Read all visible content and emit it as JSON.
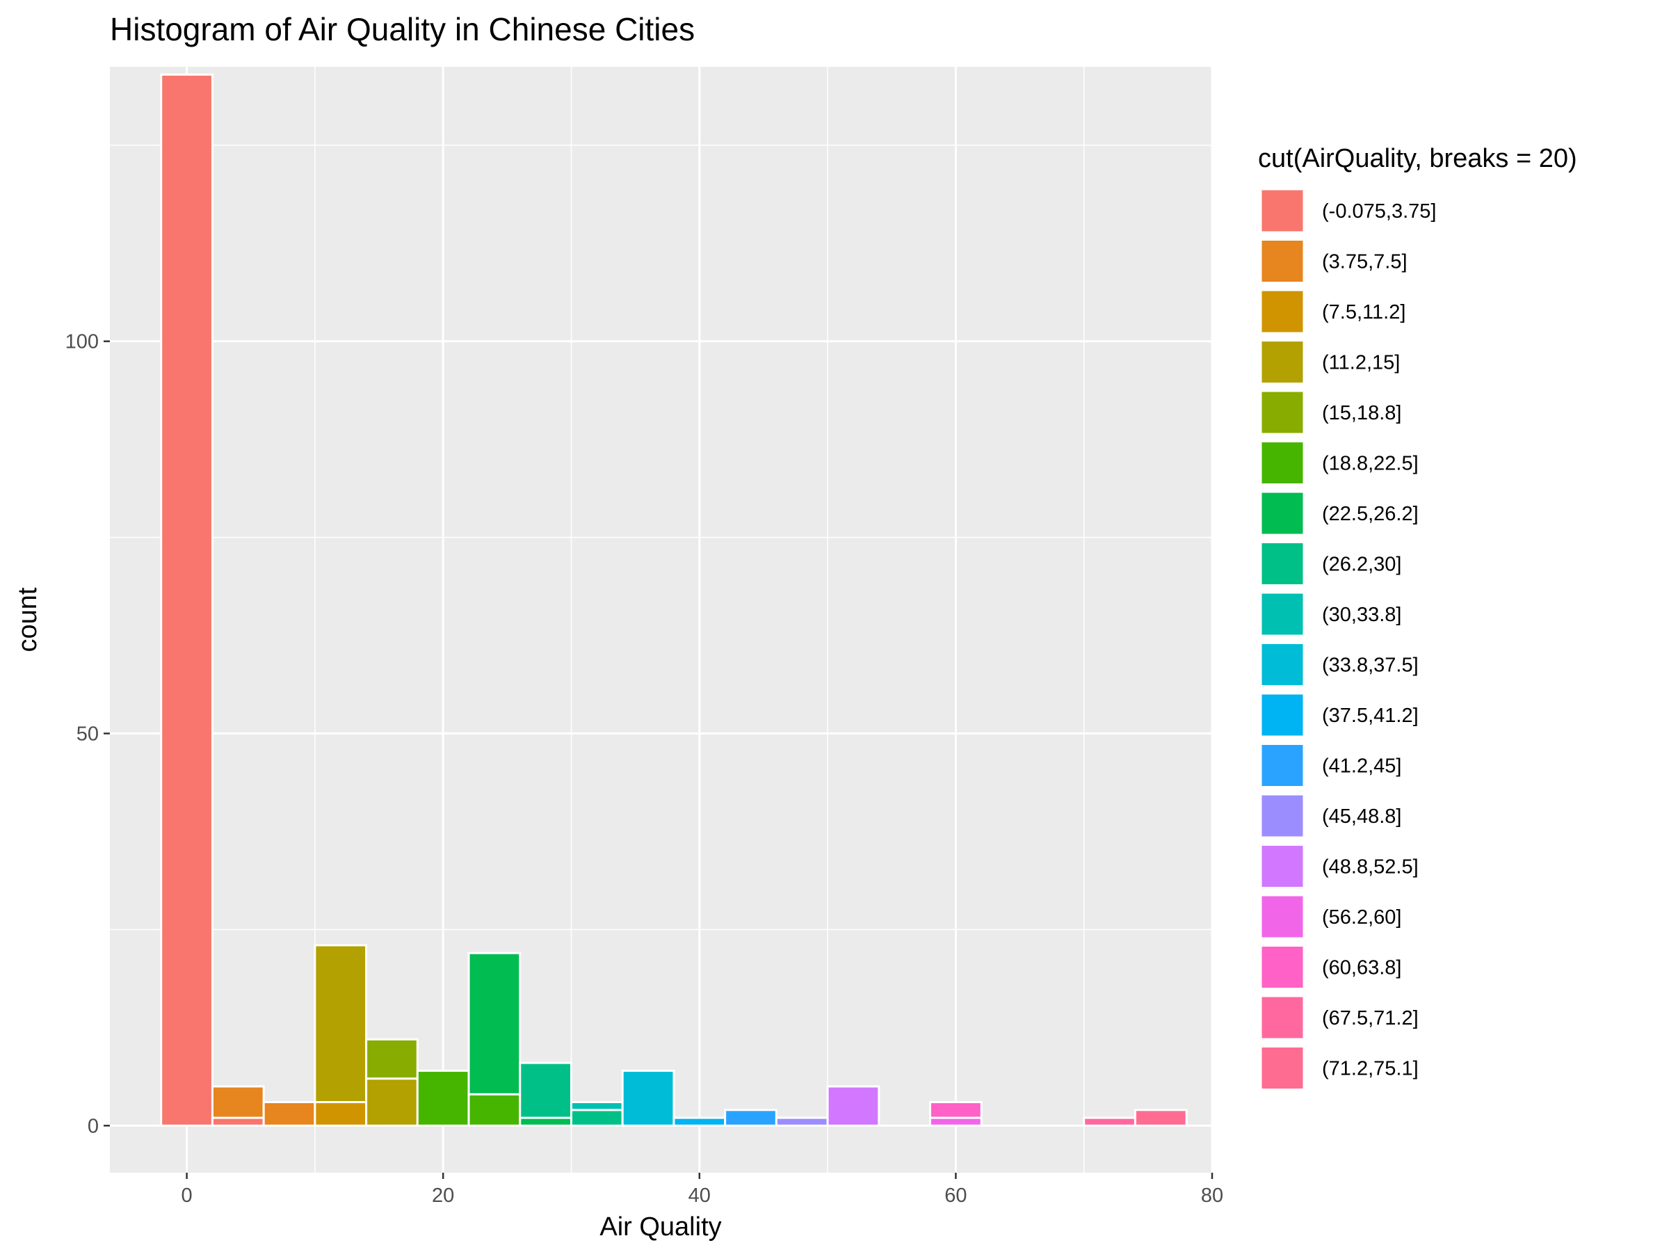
{
  "chart_data": {
    "type": "bar",
    "subtype": "stacked-histogram",
    "title": "Histogram of Air Quality in Chinese Cities",
    "xlabel": "Air Quality",
    "ylabel": "count",
    "xlim": [
      -6,
      80
    ],
    "ylim": [
      -6,
      135
    ],
    "x_ticks": [
      0,
      20,
      40,
      60,
      80
    ],
    "y_ticks": [
      0,
      50,
      100
    ],
    "binwidth": 4,
    "background": "#ebebeb",
    "grid": true,
    "legend": {
      "title": "cut(AirQuality, breaks = 20)",
      "position": "right",
      "entries": [
        {
          "label": "(-0.075,3.75]",
          "color": "#F8766D"
        },
        {
          "label": "(3.75,7.5]",
          "color": "#E7851E"
        },
        {
          "label": "(7.5,11.2]",
          "color": "#D09400"
        },
        {
          "label": "(11.2,15]",
          "color": "#B2A100"
        },
        {
          "label": "(15,18.8]",
          "color": "#89AC00"
        },
        {
          "label": "(18.8,22.5]",
          "color": "#45B500"
        },
        {
          "label": "(22.5,26.2]",
          "color": "#00BC51"
        },
        {
          "label": "(26.2,30]",
          "color": "#00C087"
        },
        {
          "label": "(30,33.8]",
          "color": "#00C0B2"
        },
        {
          "label": "(33.8,37.5]",
          "color": "#00BCD6"
        },
        {
          "label": "(37.5,41.2]",
          "color": "#00B3F2"
        },
        {
          "label": "(41.2,45]",
          "color": "#29A3FF"
        },
        {
          "label": "(45,48.8]",
          "color": "#9C8DFF"
        },
        {
          "label": "(48.8,52.5]",
          "color": "#D277FF"
        },
        {
          "label": "(56.2,60]",
          "color": "#F166E8"
        },
        {
          "label": "(60,63.8]",
          "color": "#FF61C7"
        },
        {
          "label": "(67.5,71.2]",
          "color": "#FF689E"
        },
        {
          "label": "(71.2,75.1]",
          "color": "#FF6C91"
        }
      ]
    },
    "bins": [
      {
        "center": 0,
        "segments": [
          {
            "group": "(-0.075,3.75]",
            "count": 134
          }
        ]
      },
      {
        "center": 4,
        "segments": [
          {
            "group": "(-0.075,3.75]",
            "count": 1
          },
          {
            "group": "(3.75,7.5]",
            "count": 4
          }
        ]
      },
      {
        "center": 8,
        "segments": [
          {
            "group": "(3.75,7.5]",
            "count": 3
          }
        ]
      },
      {
        "center": 12,
        "segments": [
          {
            "group": "(7.5,11.2]",
            "count": 3
          },
          {
            "group": "(11.2,15]",
            "count": 20
          }
        ]
      },
      {
        "center": 16,
        "segments": [
          {
            "group": "(11.2,15]",
            "count": 6
          },
          {
            "group": "(15,18.8]",
            "count": 5
          }
        ]
      },
      {
        "center": 20,
        "segments": [
          {
            "group": "(18.8,22.5]",
            "count": 7
          }
        ]
      },
      {
        "center": 24,
        "segments": [
          {
            "group": "(18.8,22.5]",
            "count": 4
          },
          {
            "group": "(22.5,26.2]",
            "count": 18
          }
        ]
      },
      {
        "center": 28,
        "segments": [
          {
            "group": "(22.5,26.2]",
            "count": 1
          },
          {
            "group": "(26.2,30]",
            "count": 7
          }
        ]
      },
      {
        "center": 32,
        "segments": [
          {
            "group": "(26.2,30]",
            "count": 2
          },
          {
            "group": "(30,33.8]",
            "count": 1
          }
        ]
      },
      {
        "center": 36,
        "segments": [
          {
            "group": "(33.8,37.5]",
            "count": 7
          }
        ]
      },
      {
        "center": 40,
        "segments": [
          {
            "group": "(37.5,41.2]",
            "count": 1
          }
        ]
      },
      {
        "center": 44,
        "segments": [
          {
            "group": "(41.2,45]",
            "count": 2
          }
        ]
      },
      {
        "center": 48,
        "segments": [
          {
            "group": "(45,48.8]",
            "count": 1
          }
        ]
      },
      {
        "center": 52,
        "segments": [
          {
            "group": "(48.8,52.5]",
            "count": 5
          }
        ]
      },
      {
        "center": 60,
        "segments": [
          {
            "group": "(56.2,60]",
            "count": 1
          },
          {
            "group": "(60,63.8]",
            "count": 2
          }
        ]
      },
      {
        "center": 72,
        "segments": [
          {
            "group": "(67.5,71.2]",
            "count": 1
          }
        ]
      },
      {
        "center": 76,
        "segments": [
          {
            "group": "(71.2,75.1]",
            "count": 2
          }
        ]
      }
    ]
  }
}
